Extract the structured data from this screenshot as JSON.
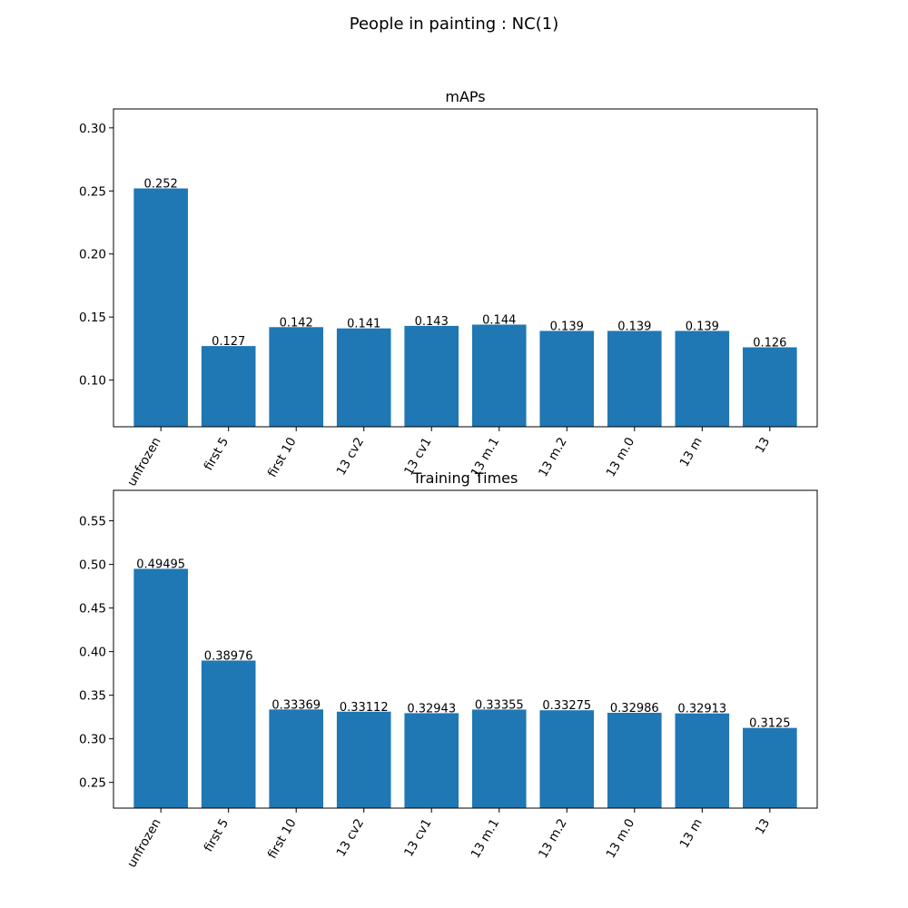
{
  "figure": {
    "title": "People in painting : NC(1)"
  },
  "chart_data": [
    {
      "type": "bar",
      "title": "mAPs",
      "color": "#1f77b4",
      "categories": [
        "unfrozen",
        "first 5",
        "first 10",
        "13 cv2",
        "13 cv1",
        "13 m.1",
        "13 m.2",
        "13 m.0",
        "13 m",
        "13"
      ],
      "values": [
        0.252,
        0.127,
        0.142,
        0.141,
        0.143,
        0.144,
        0.139,
        0.139,
        0.139,
        0.126
      ],
      "value_labels": [
        "0.252",
        "0.127",
        "0.142",
        "0.141",
        "0.143",
        "0.144",
        "0.139",
        "0.139",
        "0.139",
        "0.126"
      ],
      "ylim": [
        0.063,
        0.315
      ],
      "yticks": [
        0.1,
        0.15,
        0.2,
        0.25,
        0.3
      ],
      "ytick_labels": [
        "0.10",
        "0.15",
        "0.20",
        "0.25",
        "0.30"
      ],
      "xlabel": "",
      "ylabel": "",
      "grid": false
    },
    {
      "type": "bar",
      "title": "Training Times",
      "color": "#1f77b4",
      "categories": [
        "unfrozen",
        "first 5",
        "first 10",
        "13 cv2",
        "13 cv1",
        "13 m.1",
        "13 m.2",
        "13 m.0",
        "13 m",
        "13"
      ],
      "values": [
        0.49495,
        0.38976,
        0.33369,
        0.33112,
        0.32943,
        0.33355,
        0.33275,
        0.32986,
        0.32913,
        0.3125
      ],
      "value_labels": [
        "0.49495",
        "0.38976",
        "0.33369",
        "0.33112",
        "0.32943",
        "0.33355",
        "0.33275",
        "0.32986",
        "0.32913",
        "0.3125"
      ],
      "ylim": [
        0.2205,
        0.585
      ],
      "yticks": [
        0.25,
        0.3,
        0.35,
        0.4,
        0.45,
        0.5,
        0.55
      ],
      "ytick_labels": [
        "0.25",
        "0.30",
        "0.35",
        "0.40",
        "0.45",
        "0.50",
        "0.55"
      ],
      "xlabel": "",
      "ylabel": "",
      "grid": false
    }
  ]
}
